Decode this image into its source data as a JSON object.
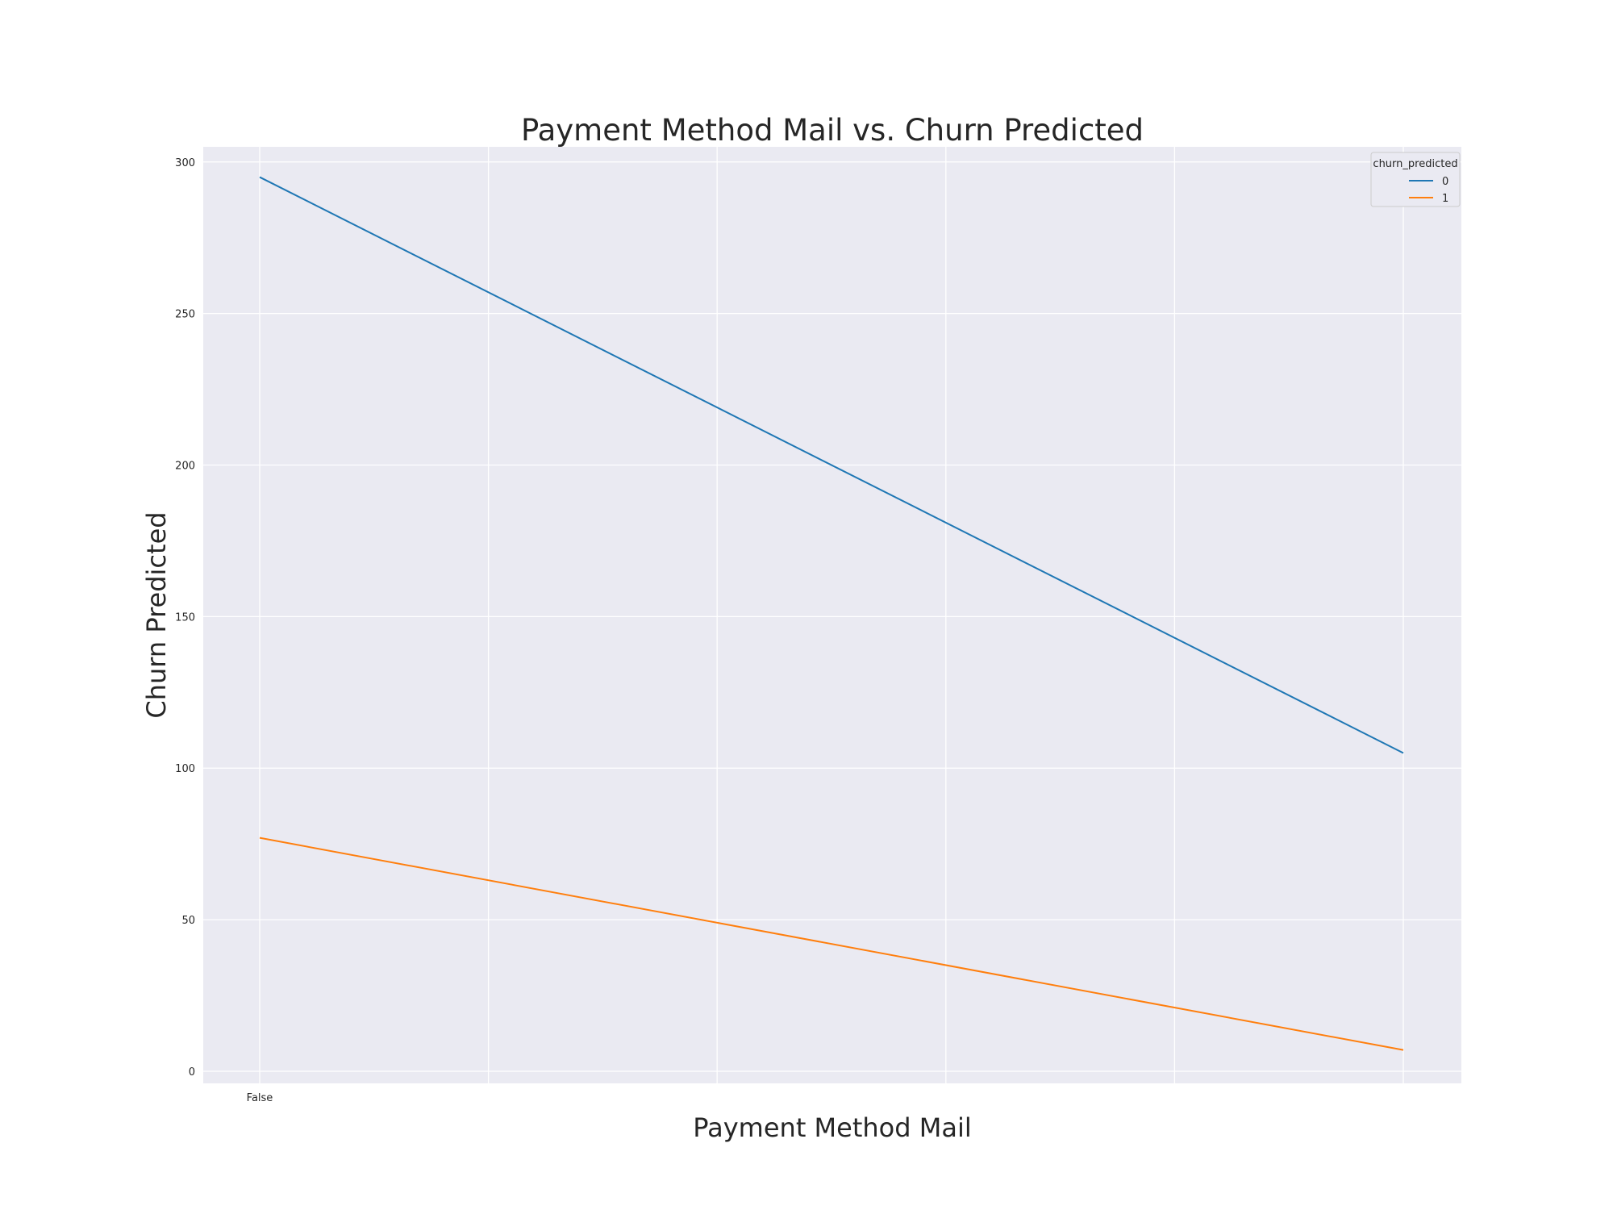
{
  "chart_data": {
    "type": "line",
    "title": "Payment Method Mail vs. Churn Predicted",
    "xlabel": "Payment Method Mail",
    "ylabel": "Churn Predicted",
    "x": [
      0,
      1
    ],
    "x_tick_labels": [
      "False"
    ],
    "ylim": [
      -4,
      305
    ],
    "y_ticks": [
      0,
      50,
      100,
      150,
      200,
      250,
      300
    ],
    "grid": true,
    "legend": {
      "title": "churn_predicted",
      "placement": "top-right",
      "entries": [
        "0",
        "1"
      ]
    },
    "series": [
      {
        "name": "0",
        "values": [
          295,
          105
        ],
        "color": "#1f77b4"
      },
      {
        "name": "1",
        "values": [
          77,
          7
        ],
        "color": "#ff7f0e"
      }
    ],
    "background": "#eaeaf2",
    "grid_color": "#ffffff"
  }
}
